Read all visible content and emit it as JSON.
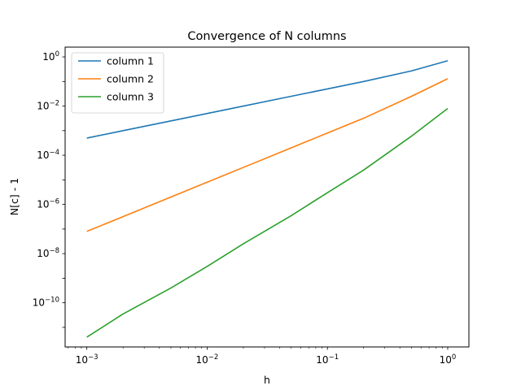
{
  "chart_data": {
    "type": "line",
    "title": "Convergence of N columns",
    "xlabel": "h",
    "ylabel": "N[c] - 1",
    "xscale": "log",
    "yscale": "log",
    "xlim": [
      0.00066,
      1.5
    ],
    "ylim": [
      1.6e-12,
      2.5
    ],
    "xticks": [
      {
        "value": 0.001,
        "mantissa": "10",
        "exponent": "−3"
      },
      {
        "value": 0.01,
        "mantissa": "10",
        "exponent": "−2"
      },
      {
        "value": 0.1,
        "mantissa": "10",
        "exponent": "−1"
      },
      {
        "value": 1,
        "mantissa": "10",
        "exponent": "0"
      }
    ],
    "yticks": [
      {
        "value": 1e-10,
        "mantissa": "10",
        "exponent": "−10"
      },
      {
        "value": 1e-08,
        "mantissa": "10",
        "exponent": "−8"
      },
      {
        "value": 1e-06,
        "mantissa": "10",
        "exponent": "−6"
      },
      {
        "value": 0.0001,
        "mantissa": "10",
        "exponent": "−4"
      },
      {
        "value": 0.01,
        "mantissa": "10",
        "exponent": "−2"
      },
      {
        "value": 1,
        "mantissa": "10",
        "exponent": "0"
      }
    ],
    "grid": false,
    "legend_position": "top-left",
    "series": [
      {
        "name": "column 1",
        "color": "#1f77b4",
        "x": [
          0.001,
          0.002,
          0.005,
          0.01,
          0.02,
          0.05,
          0.1,
          0.2,
          0.5,
          1
        ],
        "y": [
          0.0005,
          0.001,
          0.0025,
          0.005,
          0.01,
          0.025,
          0.05,
          0.1,
          0.27,
          0.7
        ]
      },
      {
        "name": "column 2",
        "color": "#ff7f0e",
        "x": [
          0.001,
          0.002,
          0.005,
          0.01,
          0.02,
          0.05,
          0.1,
          0.2,
          0.5,
          1
        ],
        "y": [
          8e-08,
          3.2e-07,
          2e-06,
          8e-06,
          3.2e-05,
          0.0002,
          0.0008,
          0.0032,
          0.025,
          0.13
        ]
      },
      {
        "name": "column 3",
        "color": "#2ca02c",
        "x": [
          0.001,
          0.002,
          0.005,
          0.01,
          0.02,
          0.05,
          0.1,
          0.2,
          0.5,
          1
        ],
        "y": [
          4e-12,
          3.5e-11,
          4e-10,
          3e-09,
          2.5e-08,
          3.5e-07,
          3e-06,
          2.5e-05,
          0.0006,
          0.008
        ]
      }
    ]
  }
}
